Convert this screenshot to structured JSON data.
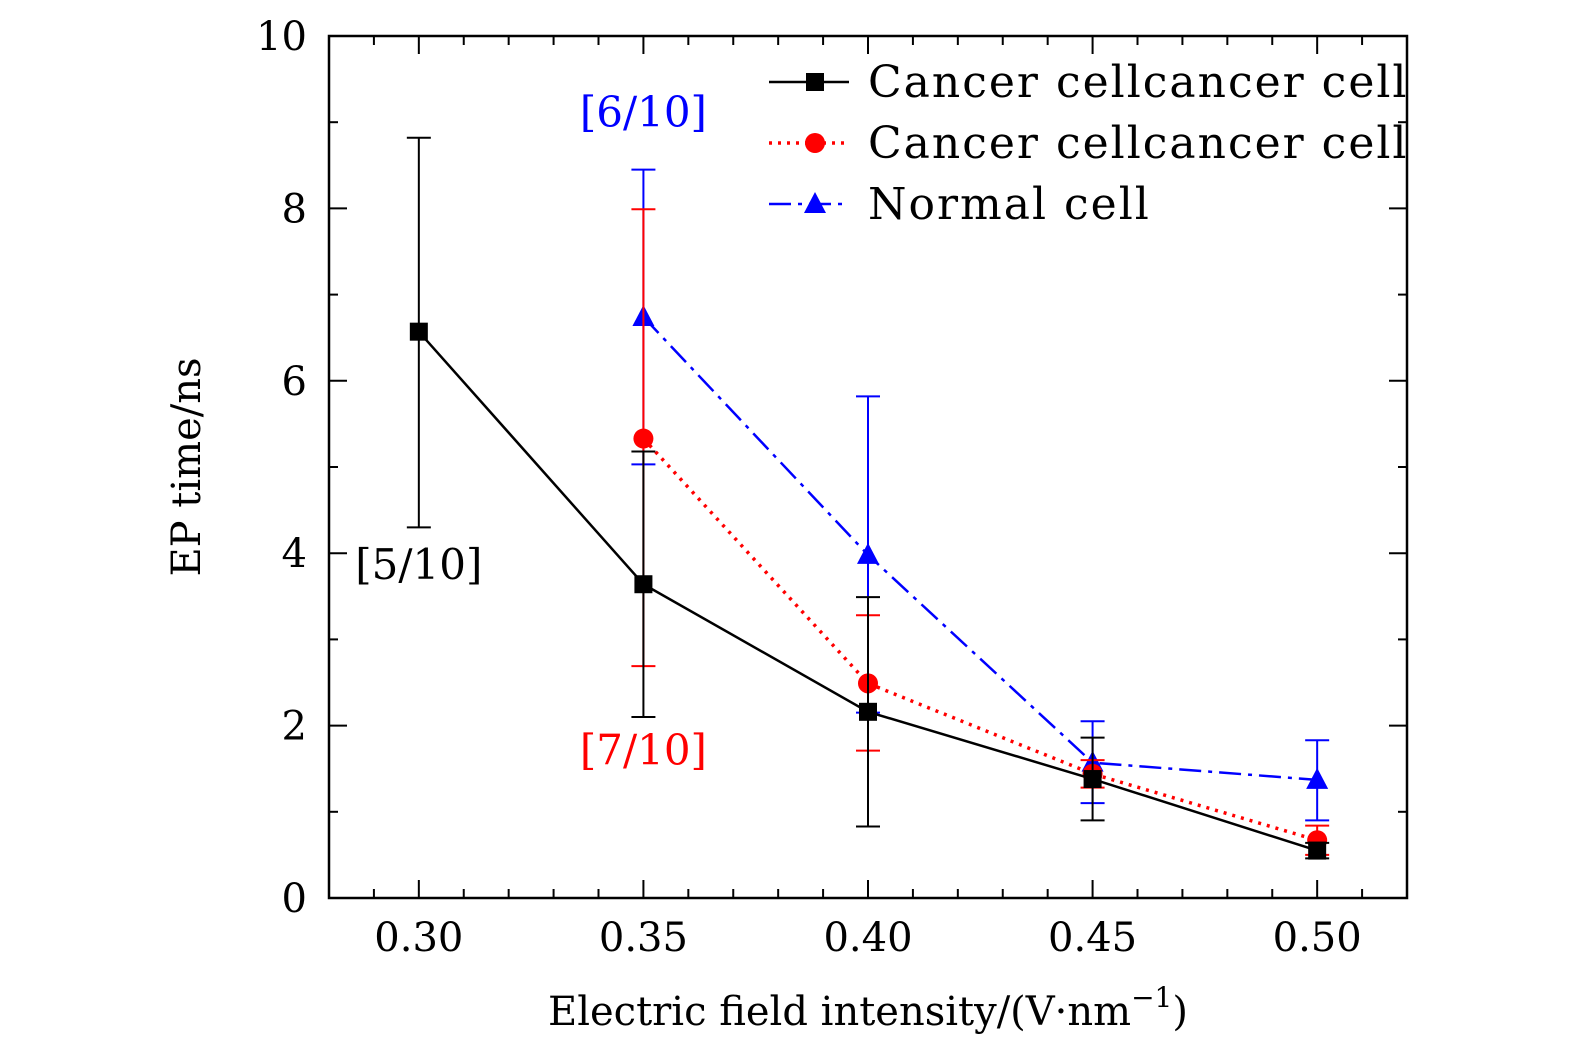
{
  "chart_data": {
    "type": "line",
    "xlabel": "Electric field intensity/(V·nm",
    "xlabel_sup": "−1",
    "xlabel_close": ")",
    "ylabel": "EP time/ns",
    "xlim": [
      0.28,
      0.52
    ],
    "ylim": [
      0,
      10
    ],
    "x_ticks": [
      0.3,
      0.35,
      0.4,
      0.45,
      0.5
    ],
    "x_tick_labels": [
      "0.30",
      "0.35",
      "0.40",
      "0.45",
      "0.50"
    ],
    "x_minor_step": 0.01,
    "y_ticks": [
      0,
      2,
      4,
      6,
      8,
      10
    ],
    "y_tick_labels": [
      "0",
      "2",
      "4",
      "6",
      "8",
      "10"
    ],
    "y_minor_step": 1,
    "grid": false,
    "legend_position": "top-right",
    "series": [
      {
        "name": "Cancer cellcancer cell",
        "color": "#000000",
        "line_style": "solid",
        "marker": "square",
        "points": [
          {
            "x": 0.3,
            "y": 6.57,
            "err_low": 4.3,
            "err_high": 8.82
          },
          {
            "x": 0.35,
            "y": 3.64,
            "err_low": 2.1,
            "err_high": 5.18
          },
          {
            "x": 0.4,
            "y": 2.16,
            "err_low": 0.83,
            "err_high": 3.49
          },
          {
            "x": 0.45,
            "y": 1.38,
            "err_low": 0.9,
            "err_high": 1.86
          },
          {
            "x": 0.5,
            "y": 0.55,
            "err_low": 0.46,
            "err_high": 0.64
          }
        ]
      },
      {
        "name": "Cancer cellcancer cell",
        "color": "#ff0000",
        "line_style": "dotted",
        "marker": "circle",
        "points": [
          {
            "x": 0.35,
            "y": 5.33,
            "err_low": 2.69,
            "err_high": 7.99
          },
          {
            "x": 0.4,
            "y": 2.49,
            "err_low": 1.71,
            "err_high": 3.28
          },
          {
            "x": 0.45,
            "y": 1.44,
            "err_low": 1.28,
            "err_high": 1.6
          },
          {
            "x": 0.5,
            "y": 0.67,
            "err_low": 0.5,
            "err_high": 0.84
          }
        ]
      },
      {
        "name": "Normal cell",
        "color": "#0000ff",
        "line_style": "dashdot",
        "marker": "triangle",
        "points": [
          {
            "x": 0.35,
            "y": 6.74,
            "err_low": 5.03,
            "err_high": 8.45
          },
          {
            "x": 0.4,
            "y": 3.98,
            "err_low": 2.15,
            "err_high": 5.82
          },
          {
            "x": 0.45,
            "y": 1.57,
            "err_low": 1.1,
            "err_high": 2.05
          },
          {
            "x": 0.5,
            "y": 1.37,
            "err_low": 0.9,
            "err_high": 1.83
          }
        ]
      }
    ],
    "annotations": [
      {
        "text": "[5/10]",
        "color": "#000000",
        "x": 0.3,
        "y": 3.7
      },
      {
        "text": "[6/10]",
        "color": "#0000ff",
        "x": 0.35,
        "y": 8.95
      },
      {
        "text": "[7/10]",
        "color": "#ff0000",
        "x": 0.35,
        "y": 1.55
      }
    ]
  }
}
